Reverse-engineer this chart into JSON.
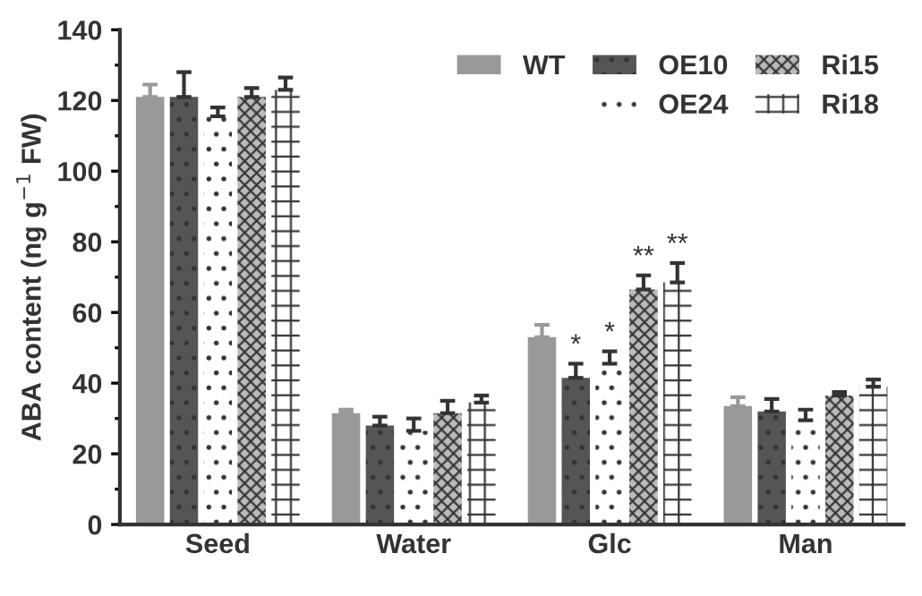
{
  "chart_data": {
    "type": "bar",
    "ylabel": "ABA content (ng g$^{−1}$ FW)",
    "categories": [
      "Seed",
      "Water",
      "Glc",
      "Man"
    ],
    "series": [
      {
        "name": "WT",
        "color": "#999999",
        "values": [
          121,
          31.5,
          53,
          33.5
        ],
        "errors": [
          3.5,
          1,
          3.5,
          2.5
        ]
      },
      {
        "name": "OE10",
        "color": "#555555",
        "values": [
          121,
          28,
          41.5,
          32
        ],
        "errors": [
          7,
          2.5,
          4,
          3.5
        ]
      },
      {
        "name": "OE24",
        "color": "#ffffff",
        "values": [
          115.5,
          26.5,
          45.5,
          29.5
        ],
        "errors": [
          2.5,
          3.5,
          3.5,
          3
        ]
      },
      {
        "name": "Ri15",
        "color": "#bbbbbb",
        "values": [
          121,
          31.5,
          66.5,
          36.5
        ],
        "errors": [
          2.5,
          3.5,
          4,
          1
        ]
      },
      {
        "name": "Ri18",
        "color": "#ffffff",
        "values": [
          123,
          34.5,
          68.5,
          39
        ],
        "errors": [
          3.5,
          2,
          5.5,
          2
        ]
      }
    ],
    "annotations": [
      "*",
      "*",
      "**",
      "**"
    ],
    "ylim": [
      0,
      140
    ],
    "yticks": [
      0,
      20,
      40,
      60,
      80,
      100,
      120,
      140
    ],
    "legend": "top right",
    "grid": false
  }
}
